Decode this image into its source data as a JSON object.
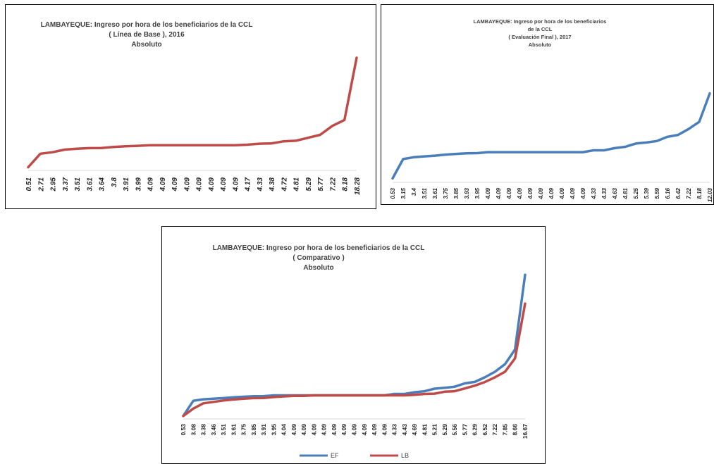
{
  "chart_data": [
    {
      "type": "line",
      "title": "LAMBAYEQUE: Ingreso por hora de los beneficiarios de la CCL",
      "subtitle": "( Línea de Base ), 2016",
      "subtitle2": "Absoluto",
      "categories": [
        "0.51",
        "2.71",
        "2.95",
        "3.37",
        "3.51",
        "3.61",
        "3.64",
        "3.8",
        "3.91",
        "3.99",
        "4.09",
        "4.09",
        "4.09",
        "4.09",
        "4.09",
        "4.09",
        "4.09",
        "4.09",
        "4.17",
        "4.33",
        "4.38",
        "4.72",
        "4.81",
        "5.29",
        "5.77",
        "7.22",
        "8.18",
        "18.28"
      ],
      "series": [
        {
          "values": [
            0.51,
            2.71,
            2.95,
            3.37,
            3.51,
            3.61,
            3.64,
            3.8,
            3.91,
            3.99,
            4.09,
            4.09,
            4.09,
            4.09,
            4.09,
            4.09,
            4.09,
            4.09,
            4.17,
            4.33,
            4.38,
            4.72,
            4.81,
            5.29,
            5.77,
            7.22,
            8.18,
            18.28
          ],
          "color": "#be4b48"
        }
      ],
      "ylim": [
        0,
        20
      ],
      "grid": false,
      "legend": "none"
    },
    {
      "type": "line",
      "title": "LAMBAYEQUE: Ingreso por hora de los beneficiarios",
      "title2": "de la CCL",
      "subtitle": "( Evaluación Final ), 2017",
      "subtitle2": "Absoluto",
      "categories": [
        "0.53",
        "3.15",
        "3.4",
        "3.51",
        "3.61",
        "3.75",
        "3.85",
        "3.93",
        "3.95",
        "4.09",
        "4.09",
        "4.09",
        "4.09",
        "4.09",
        "4.09",
        "4.09",
        "4.09",
        "4.09",
        "4.09",
        "4.33",
        "4.33",
        "4.63",
        "4.81",
        "5.25",
        "5.39",
        "5.59",
        "6.16",
        "6.42",
        "7.22",
        "8.18",
        "12.03"
      ],
      "series": [
        {
          "values": [
            0.53,
            3.15,
            3.4,
            3.51,
            3.61,
            3.75,
            3.85,
            3.93,
            3.95,
            4.09,
            4.09,
            4.09,
            4.09,
            4.09,
            4.09,
            4.09,
            4.09,
            4.09,
            4.09,
            4.33,
            4.33,
            4.63,
            4.81,
            5.25,
            5.39,
            5.59,
            6.16,
            6.42,
            7.22,
            8.18,
            12.03
          ],
          "color": "#4a7ebb"
        }
      ],
      "ylim": [
        0,
        20
      ],
      "grid": false,
      "legend": "none"
    },
    {
      "type": "line",
      "title": "LAMBAYEQUE: Ingreso por hora de los beneficiarios de la CCL",
      "subtitle": "( Comparativo )",
      "subtitle2": "Absoluto",
      "categories": [
        "0.53",
        "3.08",
        "3.38",
        "3.46",
        "3.51",
        "3.61",
        "3.75",
        "3.85",
        "3.91",
        "3.95",
        "4.04",
        "4.09",
        "4.09",
        "4.09",
        "4.09",
        "4.09",
        "4.09",
        "4.09",
        "4.09",
        "4.09",
        "4.09",
        "4.33",
        "4.43",
        "4.69",
        "4.81",
        "5.21",
        "5.29",
        "5.56",
        "5.77",
        "6.29",
        "6.52",
        "7.22",
        "7.85",
        "8.66",
        "16.67"
      ],
      "series": [
        {
          "name": "EF",
          "values": [
            0.53,
            3.15,
            3.4,
            3.51,
            3.61,
            3.75,
            3.85,
            3.93,
            3.95,
            4.09,
            4.09,
            4.09,
            4.09,
            4.09,
            4.09,
            4.09,
            4.09,
            4.09,
            4.09,
            4.09,
            4.09,
            4.33,
            4.33,
            4.63,
            4.81,
            5.25,
            5.39,
            5.59,
            6.16,
            6.42,
            7.22,
            8.18,
            9.5,
            12.03,
            25.0
          ],
          "color": "#4a7ebb"
        },
        {
          "name": "LB",
          "values": [
            0.51,
            1.8,
            2.71,
            2.95,
            3.2,
            3.37,
            3.51,
            3.61,
            3.64,
            3.8,
            3.91,
            3.99,
            4.0,
            4.09,
            4.09,
            4.09,
            4.09,
            4.09,
            4.09,
            4.09,
            4.09,
            4.09,
            4.09,
            4.17,
            4.33,
            4.38,
            4.72,
            4.81,
            5.29,
            5.77,
            6.4,
            7.22,
            8.18,
            10.5,
            20.0
          ],
          "color": "#be4b48"
        }
      ],
      "ylim": [
        0,
        26
      ],
      "grid": false,
      "legend": "bottom"
    }
  ]
}
